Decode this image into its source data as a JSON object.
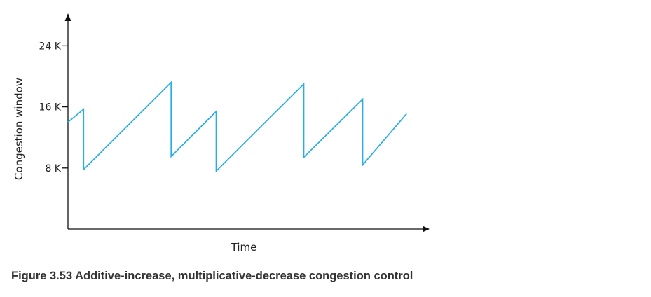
{
  "caption": "Figure 3.53 Additive-increase, multiplicative-decrease congestion control",
  "colors": {
    "series": "#27aee3",
    "axis": "#111111"
  },
  "chart_data": {
    "type": "line",
    "title": "",
    "xlabel": "Time",
    "ylabel": "Congestion window",
    "xlim": [
      0,
      100
    ],
    "ylim": [
      0,
      24
    ],
    "y_ticks": [
      {
        "value": 8,
        "label": "8 K"
      },
      {
        "value": 16,
        "label": "16 K"
      },
      {
        "value": 24,
        "label": "24 K"
      }
    ],
    "x_ticks": [],
    "grid": false,
    "legend": "none",
    "series": [
      {
        "points": [
          {
            "x": 0,
            "y": 14
          },
          {
            "x": 4.4,
            "y": 15.7
          },
          {
            "x": 4.4,
            "y": 7.8
          },
          {
            "x": 29.1,
            "y": 19.2
          },
          {
            "x": 29.1,
            "y": 9.5
          },
          {
            "x": 41.8,
            "y": 15.4
          },
          {
            "x": 41.8,
            "y": 7.6
          },
          {
            "x": 66.5,
            "y": 19.0
          },
          {
            "x": 66.5,
            "y": 9.4
          },
          {
            "x": 83.1,
            "y": 17.0
          },
          {
            "x": 83.1,
            "y": 8.4
          },
          {
            "x": 95.5,
            "y": 15.1
          }
        ]
      }
    ]
  }
}
